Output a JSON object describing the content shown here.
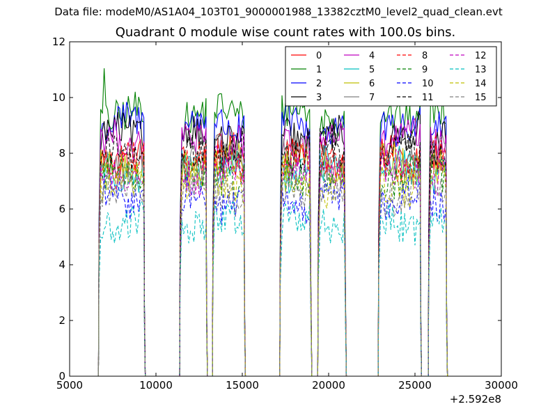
{
  "figure": {
    "suptitle": "Data file: modeM0/AS1A04_103T01_9000001988_13382cztM0_level2_quad_clean.evt"
  },
  "chart_data": {
    "type": "line",
    "title": "Quadrant 0 module wise count rates with 100.0s bins.",
    "xlabel": "",
    "ylabel": "",
    "xlim": [
      5000,
      30000
    ],
    "ylim": [
      0,
      12
    ],
    "x_offset_label": "+2.592e8",
    "xticks": [
      {
        "value": 5000,
        "label": "5000"
      },
      {
        "value": 10000,
        "label": "10000"
      },
      {
        "value": 15000,
        "label": "15000"
      },
      {
        "value": 20000,
        "label": "20000"
      },
      {
        "value": 25000,
        "label": "25000"
      },
      {
        "value": 30000,
        "label": "30000"
      }
    ],
    "yticks": [
      {
        "value": 0,
        "label": "0"
      },
      {
        "value": 2,
        "label": "2"
      },
      {
        "value": 4,
        "label": "4"
      },
      {
        "value": 6,
        "label": "6"
      },
      {
        "value": 8,
        "label": "8"
      },
      {
        "value": 10,
        "label": "10"
      },
      {
        "value": 12,
        "label": "12"
      }
    ],
    "grid": false,
    "legend_position": "top-right",
    "legend_columns": 4,
    "segments": [
      [
        6700,
        9300
      ],
      [
        11400,
        12900
      ],
      [
        13300,
        15100
      ],
      [
        17200,
        18950
      ],
      [
        19400,
        20950
      ],
      [
        22900,
        25300
      ],
      [
        25800,
        26800
      ]
    ],
    "series": [
      {
        "name": "0",
        "color": "#ff0000",
        "dash": "solid",
        "mean": 7.9
      },
      {
        "name": "1",
        "color": "#008000",
        "dash": "solid",
        "mean": 9.4
      },
      {
        "name": "2",
        "color": "#0000ff",
        "dash": "solid",
        "mean": 9.0
      },
      {
        "name": "3",
        "color": "#000000",
        "dash": "solid",
        "mean": 8.6
      },
      {
        "name": "4",
        "color": "#bf00bf",
        "dash": "solid",
        "mean": 8.4
      },
      {
        "name": "5",
        "color": "#00bfbf",
        "dash": "solid",
        "mean": 7.4
      },
      {
        "name": "6",
        "color": "#bfbf00",
        "dash": "solid",
        "mean": 7.6
      },
      {
        "name": "7",
        "color": "#808080",
        "dash": "solid",
        "mean": 7.8
      },
      {
        "name": "8",
        "color": "#ff0000",
        "dash": "dashed",
        "mean": 7.7
      },
      {
        "name": "9",
        "color": "#008000",
        "dash": "dashed",
        "mean": 7.2
      },
      {
        "name": "10",
        "color": "#0000ff",
        "dash": "dashed",
        "mean": 6.3
      },
      {
        "name": "11",
        "color": "#000000",
        "dash": "dashed",
        "mean": 8.1
      },
      {
        "name": "12",
        "color": "#bf00bf",
        "dash": "dashed",
        "mean": 7.3
      },
      {
        "name": "13",
        "color": "#00bfbf",
        "dash": "dashed",
        "mean": 5.5
      },
      {
        "name": "14",
        "color": "#bfbf00",
        "dash": "dashed",
        "mean": 6.9
      },
      {
        "name": "15",
        "color": "#808080",
        "dash": "dashed",
        "mean": 6.6
      }
    ]
  }
}
